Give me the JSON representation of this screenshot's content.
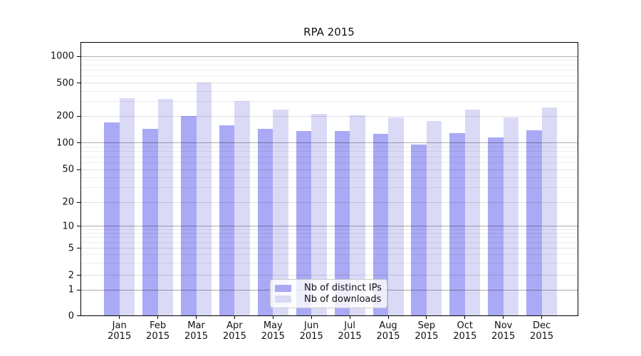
{
  "title": "RPA 2015",
  "chart_data": {
    "type": "bar",
    "title": "RPA 2015",
    "categories": [
      "Jan",
      "Feb",
      "Mar",
      "Apr",
      "May",
      "Jun",
      "Jul",
      "Aug",
      "Sep",
      "Oct",
      "Nov",
      "Dec"
    ],
    "category_year": "2015",
    "series": [
      {
        "name": "Nb of distinct IPs",
        "color": "#a9a9f5",
        "values": [
          170,
          143,
          203,
          158,
          143,
          136,
          136,
          126,
          95,
          128,
          115,
          138
        ]
      },
      {
        "name": "Nb of downloads",
        "color": "#dadaf7",
        "values": [
          330,
          322,
          510,
          303,
          240,
          212,
          207,
          194,
          176,
          240,
          193,
          255
        ]
      }
    ],
    "xlabel": "",
    "ylabel": "",
    "yscale": "symlog",
    "yticks": [
      0,
      1,
      2,
      5,
      10,
      20,
      50,
      100,
      200,
      500,
      1000
    ],
    "ylim": [
      0,
      1450
    ],
    "grid": true,
    "legend_position": "lower-center-inside"
  }
}
